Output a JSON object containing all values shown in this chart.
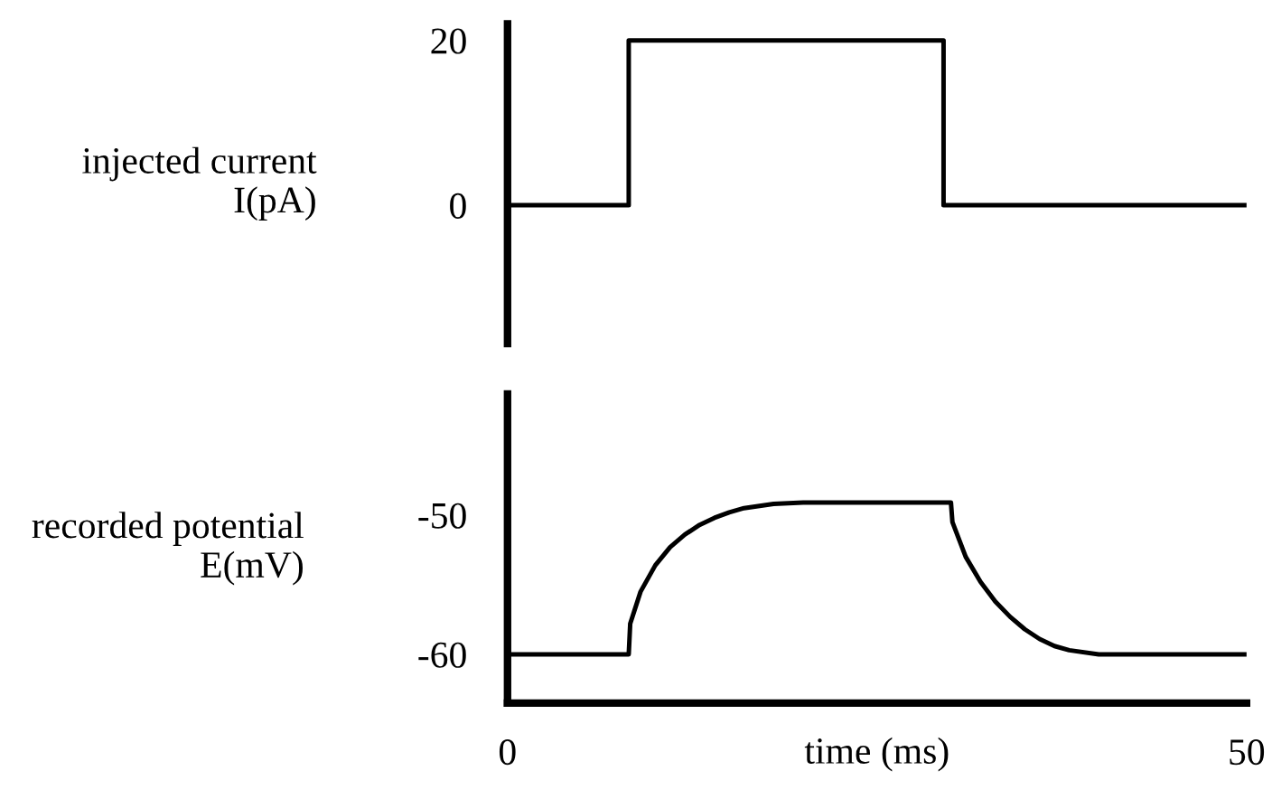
{
  "chart_data": [
    {
      "type": "line",
      "ylabel": "injected current\nI(pA)",
      "xlim": [
        0,
        50
      ],
      "xticks": [
        0,
        50
      ],
      "ylim": [
        -16.8,
        22
      ],
      "yticks": [
        0,
        20
      ],
      "tick_labels": "y",
      "grid": false,
      "legend": false,
      "series": [
        {
          "color": "#000000",
          "x": [
            0,
            8.2,
            8.2,
            29.5,
            29.5,
            50
          ],
          "values": [
            0,
            0,
            20,
            20,
            0,
            0
          ]
        }
      ]
    },
    {
      "type": "line",
      "ylabel": "recorded potential\nE(mV)",
      "xlabel": "time (ms)",
      "xlim": [
        0,
        50
      ],
      "ylim": [
        -63.5,
        -41.3
      ],
      "xticks": [
        0,
        50
      ],
      "yticks": [
        -60,
        -50
      ],
      "grid": false,
      "legend": false,
      "series": [
        {
          "color": "#000000",
          "x": [
            0,
            8.2,
            8.3,
            9,
            10,
            11,
            12,
            13,
            14,
            15,
            16,
            18,
            20,
            30,
            30.1,
            31,
            32,
            33,
            34,
            35,
            36,
            37,
            38,
            40,
            50
          ],
          "values": [
            -60,
            -60,
            -57.8,
            -55.5,
            -53.6,
            -52.3,
            -51.4,
            -50.7,
            -50.2,
            -49.8,
            -49.5,
            -49.2,
            -49.1,
            -49.1,
            -50.5,
            -53,
            -54.8,
            -56.2,
            -57.3,
            -58.2,
            -58.9,
            -59.4,
            -59.7,
            -60,
            -60
          ]
        }
      ]
    }
  ]
}
